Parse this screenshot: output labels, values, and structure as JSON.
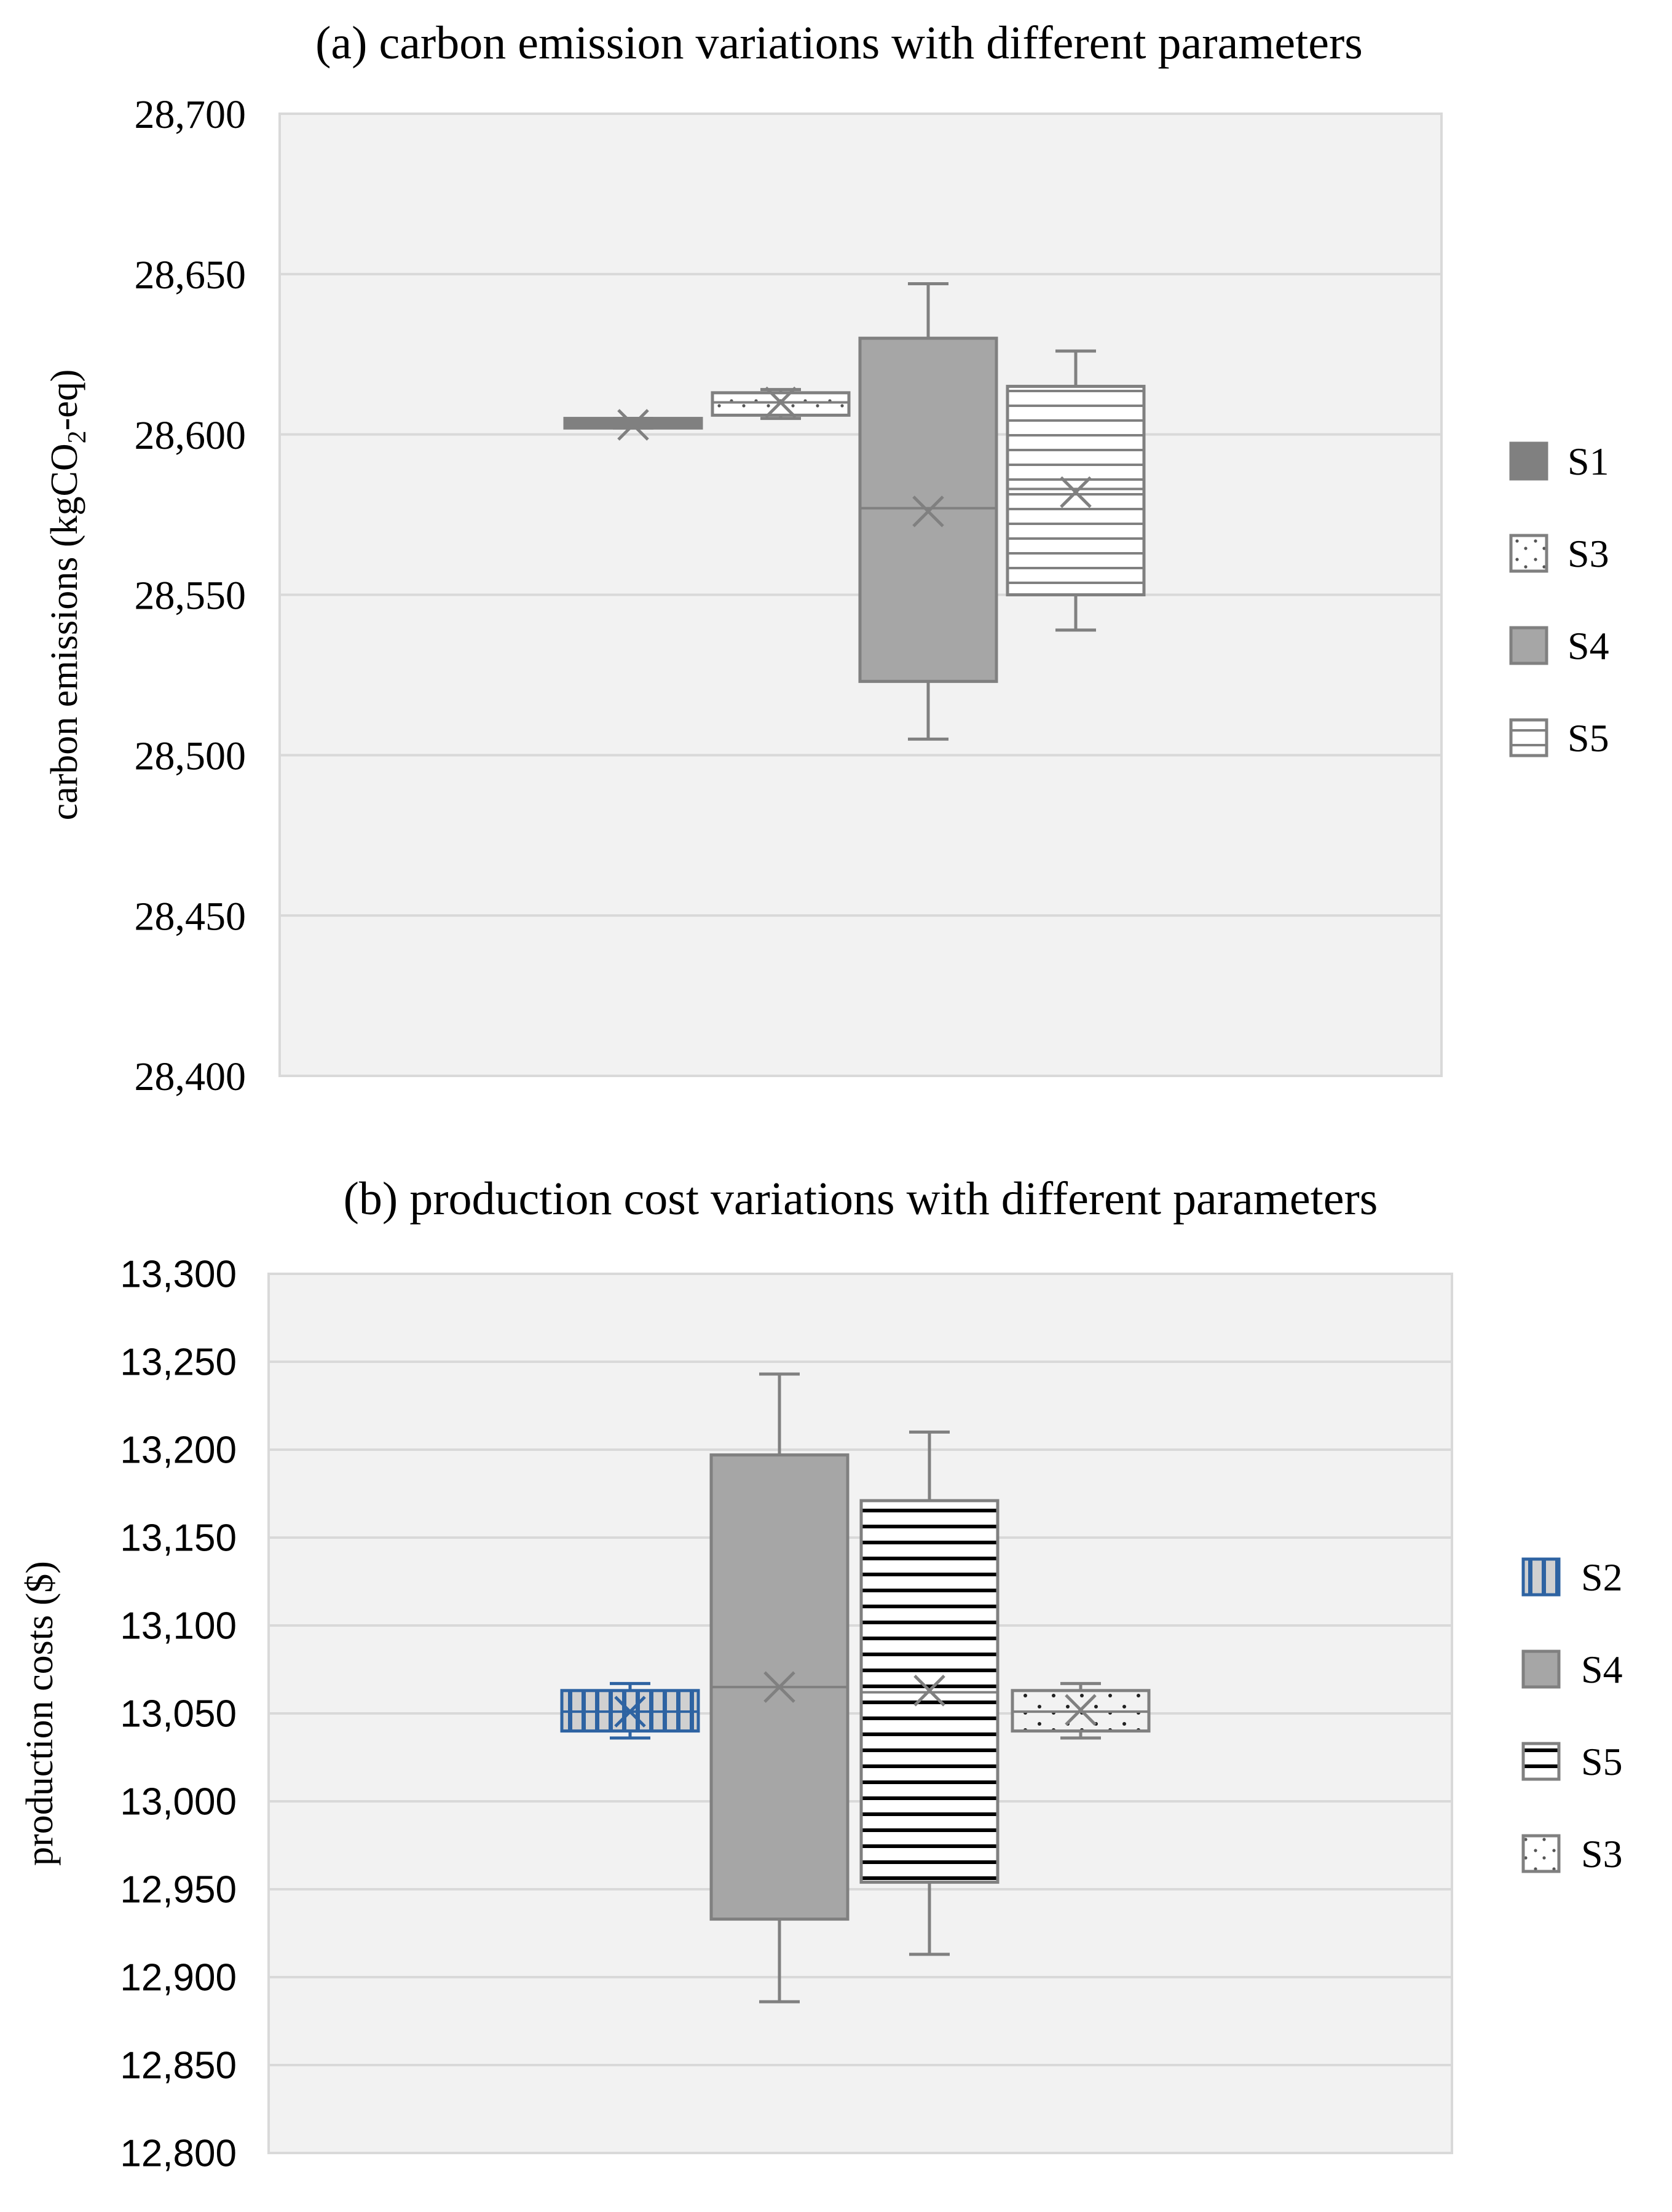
{
  "chart_data": [
    {
      "type": "box",
      "title": "(a) carbon emission variations with different parameters",
      "ylabel": "carbon emissions (kgCO₂-eq)",
      "xlabel": "",
      "ylim": [
        28400,
        28700
      ],
      "yticks": [
        28400,
        28450,
        28500,
        28550,
        28600,
        28650,
        28700
      ],
      "ytick_labels": [
        "28,400",
        "28,450",
        "28,500",
        "28,550",
        "28,600",
        "28,650",
        "28,700"
      ],
      "grid": true,
      "legend_position": "right",
      "series": [
        {
          "name": "S1",
          "min": 28602,
          "q1": 28602,
          "median": 28603,
          "q3": 28605,
          "max": 28605,
          "mean": 28603,
          "pattern": "solid-dark"
        },
        {
          "name": "S3",
          "min": 28605,
          "q1": 28606,
          "median": 28610,
          "q3": 28613,
          "max": 28614,
          "mean": 28610,
          "pattern": "dots"
        },
        {
          "name": "S4",
          "min": 28505,
          "q1": 28523,
          "median": 28577,
          "q3": 28630,
          "max": 28647,
          "mean": 28576,
          "pattern": "solid-gray"
        },
        {
          "name": "S5",
          "min": 28539,
          "q1": 28550,
          "median": 28583,
          "q3": 28615,
          "max": 28626,
          "mean": 28582,
          "pattern": "hlines-gray"
        }
      ]
    },
    {
      "type": "box",
      "title": "(b) production cost variations with different parameters",
      "ylabel": "production costs ($)",
      "xlabel": "",
      "ylim": [
        12800,
        13300
      ],
      "yticks": [
        12800,
        12850,
        12900,
        12950,
        13000,
        13050,
        13100,
        13150,
        13200,
        13250,
        13300
      ],
      "ytick_labels": [
        "12,800",
        "12,850",
        "12,900",
        "12,950",
        "13,000",
        "13,050",
        "13,100",
        "13,150",
        "13,200",
        "13,250",
        "13,300"
      ],
      "grid": true,
      "legend_position": "right",
      "series": [
        {
          "name": "S2",
          "min": 13036,
          "q1": 13040,
          "median": 13051,
          "q3": 13063,
          "max": 13067,
          "mean": 13051,
          "pattern": "vlines-blue"
        },
        {
          "name": "S4",
          "min": 12886,
          "q1": 12933,
          "median": 13065,
          "q3": 13197,
          "max": 13243,
          "mean": 13065,
          "pattern": "solid-gray"
        },
        {
          "name": "S5",
          "min": 12913,
          "q1": 12954,
          "median": 13062,
          "q3": 13171,
          "max": 13210,
          "mean": 13063,
          "pattern": "hlines-black"
        },
        {
          "name": "S3",
          "min": 13036,
          "q1": 13040,
          "median": 13051,
          "q3": 13063,
          "max": 13067,
          "mean": 13052,
          "pattern": "dots"
        }
      ]
    }
  ],
  "colors": {
    "plot_bg": "#f2f2f2",
    "grid": "#d9d9d9",
    "axis": "#d9d9d9",
    "box_stroke": "#808080",
    "dark_fill": "#808080",
    "gray_fill": "#a6a6a6",
    "blue": "#2e63a2"
  }
}
